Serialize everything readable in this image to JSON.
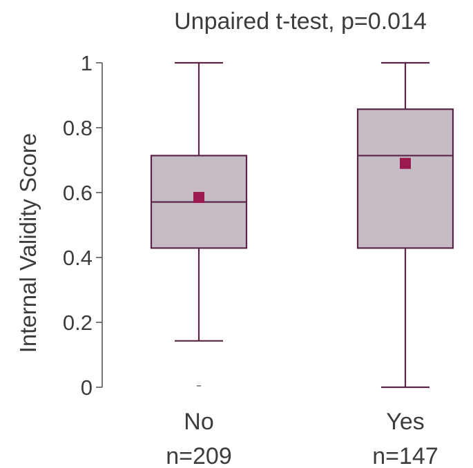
{
  "chart_data": {
    "type": "box",
    "title": "Unpaired t-test, p=0.014",
    "ylabel": "Internal Validity Score",
    "ylim": [
      0,
      1
    ],
    "yticks": [
      0,
      0.2,
      0.4,
      0.6,
      0.8,
      1
    ],
    "ytick_labels": [
      "0",
      "0.2",
      "0.4",
      "0.6",
      "0.8",
      "1"
    ],
    "groups": [
      {
        "category": "No",
        "n_label": "n=209",
        "whisker_low": 0.143,
        "q1": 0.429,
        "median": 0.571,
        "q3": 0.714,
        "whisker_high": 1.0,
        "mean": 0.585,
        "outliers": [
          0.0
        ]
      },
      {
        "category": "Yes",
        "n_label": "n=147",
        "whisker_low": 0.0,
        "q1": 0.429,
        "median": 0.714,
        "q3": 0.857,
        "whisker_high": 1.0,
        "mean": 0.69,
        "outliers": []
      }
    ],
    "colors": {
      "box_fill": "#c6bcc6",
      "box_stroke": "#5a2448",
      "mean_marker": "#9b1a4e",
      "outlier": "#8a8a8a"
    }
  }
}
